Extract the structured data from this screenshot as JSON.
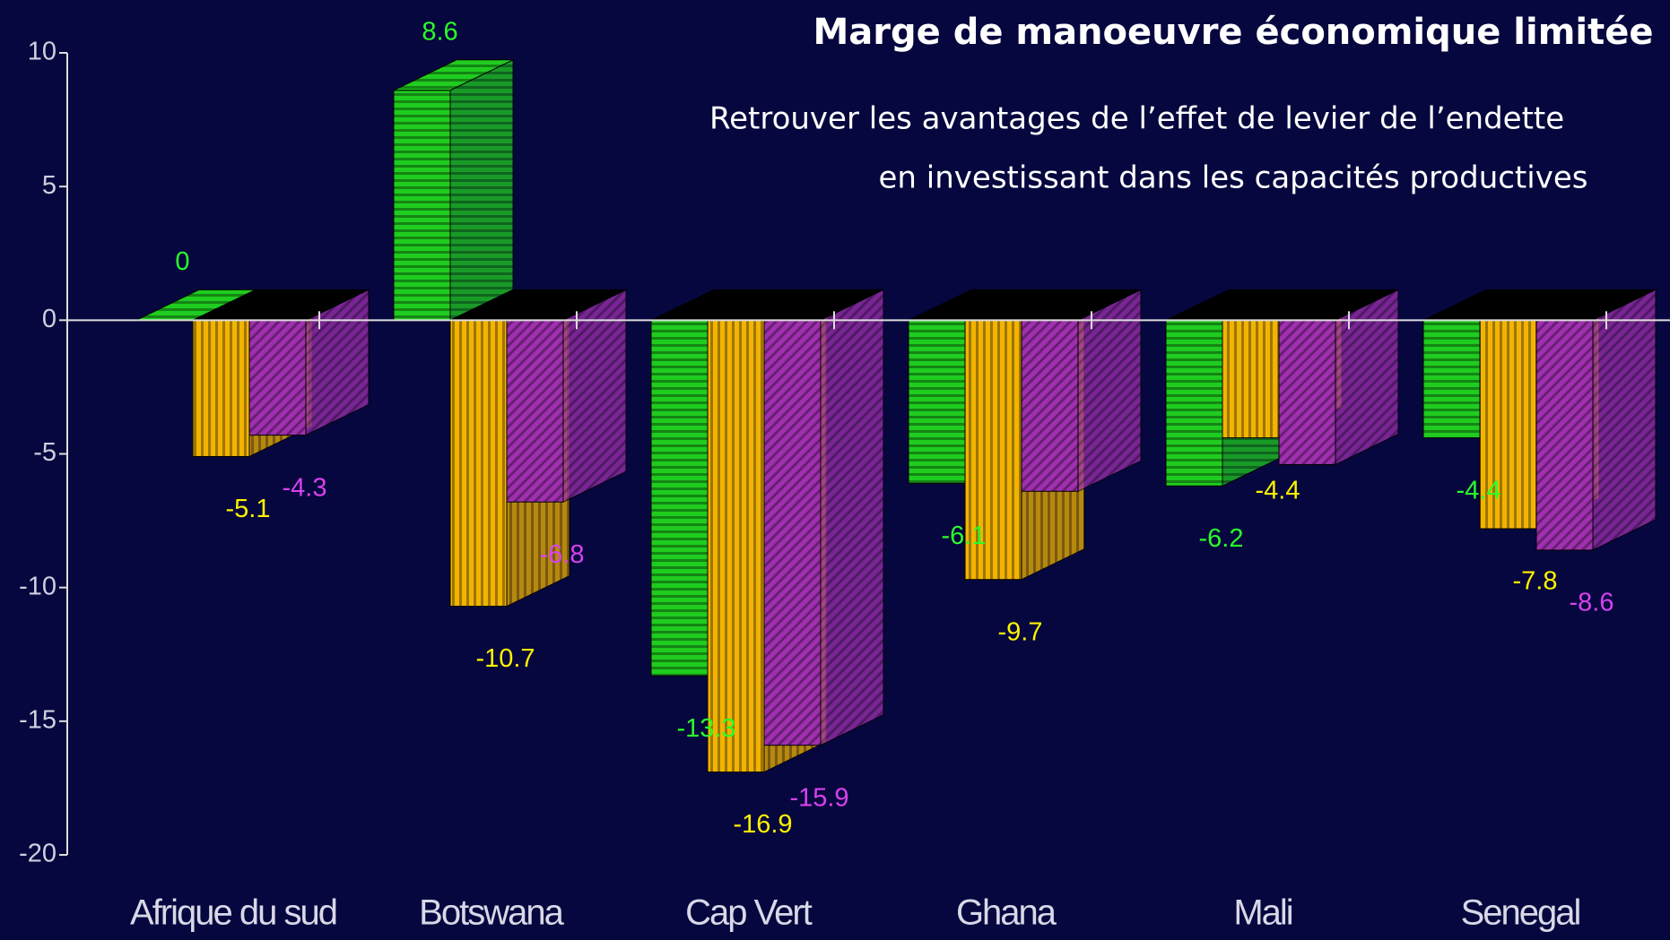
{
  "chart_data": {
    "type": "bar3d",
    "title": "Marge de manoeuvre économique limitée",
    "subtitle": [
      "Retrouver les avantages de l’effet de levier de l’endette",
      "en investissant dans les capacités productives"
    ],
    "categories": [
      "Afrique du sud",
      "Botswana",
      "Cap Vert",
      "Ghana",
      "Mali",
      "Senegal"
    ],
    "series": [
      {
        "color": "#1fcc1f",
        "values": [
          0,
          8.6,
          -13.3,
          -6.1,
          -6.2,
          -4.4
        ]
      },
      {
        "color": "#f2b400",
        "values": [
          -5.1,
          -10.7,
          -16.9,
          -9.7,
          -4.4,
          -7.8
        ]
      },
      {
        "color": "#a030b0",
        "values": [
          -4.3,
          -6.8,
          -15.9,
          -6.4,
          -5.4,
          -8.6
        ],
        "value_labels": [
          "-4.3",
          "-6.8",
          "-15.9",
          null,
          null,
          "-8.6"
        ]
      }
    ],
    "ylim": [
      -20,
      10
    ],
    "yticks": [
      -20,
      -15,
      -10,
      -5,
      0,
      5,
      10
    ]
  }
}
